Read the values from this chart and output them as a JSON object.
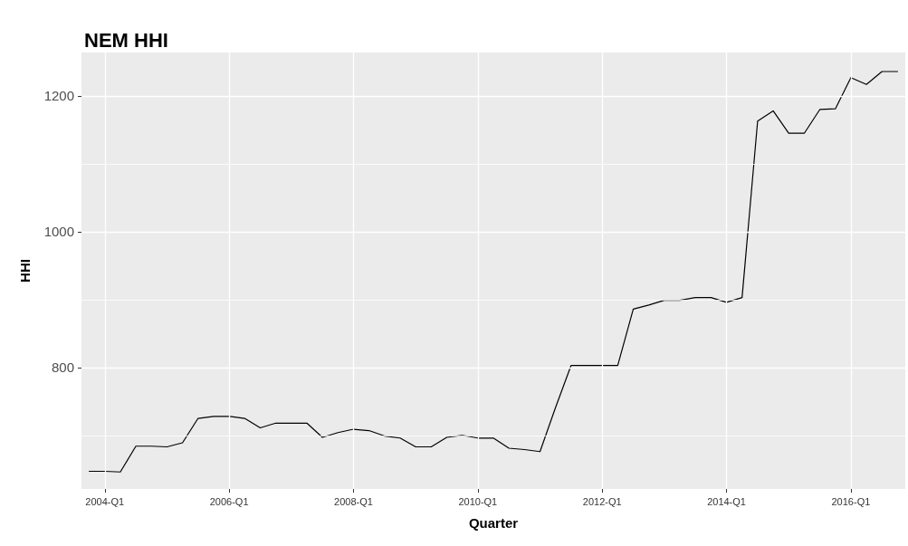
{
  "chart_data": {
    "type": "line",
    "title": "NEM HHI",
    "xlabel": "Quarter",
    "ylabel": "HHI",
    "categories": [
      null,
      "2004-Q1",
      null,
      null,
      null,
      null,
      null,
      null,
      null,
      "2006-Q1",
      null,
      null,
      null,
      null,
      null,
      null,
      null,
      "2008-Q1",
      null,
      null,
      null,
      null,
      null,
      null,
      null,
      "2010-Q1",
      null,
      null,
      null,
      null,
      null,
      null,
      null,
      "2012-Q1",
      null,
      null,
      null,
      null,
      null,
      null,
      null,
      "2014-Q1",
      null,
      null,
      null,
      null,
      null,
      null,
      null,
      "2016-Q1",
      null,
      null,
      null
    ],
    "series": [
      {
        "color": "#000000",
        "values": [
          647,
          647,
          646,
          684,
          684,
          683,
          689,
          725,
          728,
          728,
          725,
          711,
          718,
          718,
          718,
          697,
          704,
          709,
          707,
          699,
          696,
          683,
          683,
          697,
          700,
          696,
          696,
          681,
          679,
          676,
          741,
          803,
          803,
          803,
          803,
          886,
          892,
          899,
          899,
          903,
          903,
          896,
          903,
          1163,
          1178,
          1145,
          1145,
          1180,
          1181,
          1227,
          1217,
          1236,
          1236
        ]
      }
    ],
    "ylim": [
      621,
      1264
    ],
    "yticks": [
      {
        "value": 700,
        "label": null
      },
      800,
      {
        "value": 900,
        "label": null
      },
      1000,
      {
        "value": 1100,
        "label": null
      },
      1200
    ],
    "grid": true,
    "marker": "none",
    "line_style": "solid"
  }
}
